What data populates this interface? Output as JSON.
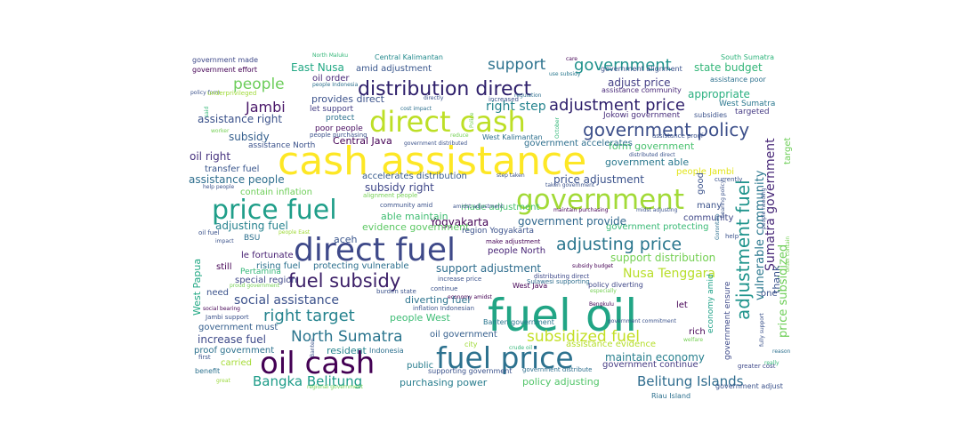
{
  "words": [
    {
      "text": "cash assistance",
      "color": "#fde725",
      "weight": 1.0
    },
    {
      "text": "fuel oil",
      "color": "#21a585",
      "weight": 0.95
    },
    {
      "text": "direct fuel",
      "color": "#3e4989",
      "weight": 0.78
    },
    {
      "text": "oil cash",
      "color": "#440154",
      "weight": 0.77
    },
    {
      "text": "fuel price",
      "color": "#2c718e",
      "weight": 0.76
    },
    {
      "text": "direct cash",
      "color": "#bddf26",
      "weight": 0.74
    },
    {
      "text": "government",
      "color": "#a2da37",
      "weight": 0.7
    },
    {
      "text": "price fuel",
      "color": "#1f9e89",
      "weight": 0.68
    },
    {
      "text": "distribution direct",
      "color": "#2d1e6a",
      "weight": 0.52
    },
    {
      "text": "fuel subsidy",
      "color": "#3a1d66",
      "weight": 0.5
    },
    {
      "text": "government policy",
      "color": "#3c4f8a",
      "weight": 0.49
    },
    {
      "text": "adjustment fuel",
      "color": "#1f948c",
      "weight": 0.48
    },
    {
      "text": "adjusting price",
      "color": "#2a768e",
      "weight": 0.44
    },
    {
      "text": "adjustment price",
      "color": "#2d1e6a",
      "weight": 0.4
    },
    {
      "text": "North Sumatra",
      "color": "#2b758e",
      "weight": 0.38
    },
    {
      "text": "subsidized fuel",
      "color": "#c2df23",
      "weight": 0.36
    },
    {
      "text": "right target",
      "color": "#25838e",
      "weight": 0.38
    },
    {
      "text": "people",
      "color": "#6ccd5a",
      "weight": 0.34
    },
    {
      "text": "support",
      "color": "#2c728e",
      "weight": 0.33
    },
    {
      "text": "government",
      "color": "#20928c",
      "weight": 0.34
    },
    {
      "text": "Bangka Belitung",
      "color": "#1e9c89",
      "weight": 0.32
    },
    {
      "text": "Belitung Islands",
      "color": "#2f6c8e",
      "weight": 0.32
    },
    {
      "text": "Jambi",
      "color": "#481668",
      "weight": 0.3
    },
    {
      "text": "right step",
      "color": "#25848e",
      "weight": 0.28
    },
    {
      "text": "social assistance",
      "color": "#3b518b",
      "weight": 0.28
    },
    {
      "text": "Nusa Tenggara",
      "color": "#b8de29",
      "weight": 0.28
    },
    {
      "text": "Sumatra government",
      "color": "#482878",
      "weight": 0.27
    },
    {
      "text": "price subsidized",
      "color": "#6ece58",
      "weight": 0.26
    },
    {
      "text": "vulnerable community",
      "color": "#2a778e",
      "weight": 0.25
    },
    {
      "text": "East Nusa",
      "color": "#22a884",
      "weight": 0.24
    },
    {
      "text": "state budget",
      "color": "#34b679",
      "weight": 0.24
    },
    {
      "text": "appropriate",
      "color": "#29af7f",
      "weight": 0.24
    },
    {
      "text": "assistance right",
      "color": "#3b528b",
      "weight": 0.24
    },
    {
      "text": "subsidy right",
      "color": "#3f4788",
      "weight": 0.24
    },
    {
      "text": "Yogyakarta",
      "color": "#450457",
      "weight": 0.25
    },
    {
      "text": "price adjustment",
      "color": "#3b528b",
      "weight": 0.24
    },
    {
      "text": "government provide",
      "color": "#31688e",
      "weight": 0.24
    },
    {
      "text": "support adjustment",
      "color": "#2e6d8e",
      "weight": 0.24
    },
    {
      "text": "support distribution",
      "color": "#75d054",
      "weight": 0.24
    },
    {
      "text": "adjust price",
      "color": "#433e85",
      "weight": 0.23
    },
    {
      "text": "assistance people",
      "color": "#2e6e8e",
      "weight": 0.24
    },
    {
      "text": "adjusting fuel",
      "color": "#26828e",
      "weight": 0.24
    },
    {
      "text": "able maintain",
      "color": "#40bd72",
      "weight": 0.22
    },
    {
      "text": "maintain economy",
      "color": "#277f8e",
      "weight": 0.23
    },
    {
      "text": "purchasing power",
      "color": "#287d8e",
      "weight": 0.22
    },
    {
      "text": "policy adjusting",
      "color": "#52c569",
      "weight": 0.22
    },
    {
      "text": "increase fuel",
      "color": "#3e4a89",
      "weight": 0.22
    },
    {
      "text": "form government",
      "color": "#48c16e",
      "weight": 0.22
    },
    {
      "text": "government able",
      "color": "#2a788e",
      "weight": 0.22
    },
    {
      "text": "oil right",
      "color": "#46327e",
      "weight": 0.22
    },
    {
      "text": "subsidy",
      "color": "#355f8d",
      "weight": 0.22
    },
    {
      "text": "Central Java",
      "color": "#440154",
      "weight": 0.22
    },
    {
      "text": "evidence government",
      "color": "#5cc863",
      "weight": 0.21
    },
    {
      "text": "aceh",
      "color": "#39558c",
      "weight": 0.21
    },
    {
      "text": "people West",
      "color": "#3dbc74",
      "weight": 0.21
    },
    {
      "text": "oil government",
      "color": "#355f8d",
      "weight": 0.2
    },
    {
      "text": "resident",
      "color": "#25838e",
      "weight": 0.2
    },
    {
      "text": "diverting fuel",
      "color": "#2c738e",
      "weight": 0.2
    },
    {
      "text": "provides direct",
      "color": "#3b528b",
      "weight": 0.2
    },
    {
      "text": "amid adjustment",
      "color": "#39568c",
      "weight": 0.17
    },
    {
      "text": "West Papua",
      "color": "#22a884",
      "weight": 0.2
    },
    {
      "text": "thank",
      "color": "#3a538b",
      "weight": 0.2
    },
    {
      "text": "economy amid",
      "color": "#1fa188",
      "weight": 0.17
    },
    {
      "text": "government ensure",
      "color": "#3e4a89",
      "weight": 0.17
    },
    {
      "text": "protecting vulnerable",
      "color": "#2d708e",
      "weight": 0.18
    },
    {
      "text": "rising fuel",
      "color": "#2c728e",
      "weight": 0.18
    },
    {
      "text": "special region",
      "color": "#3f4889",
      "weight": 0.18
    },
    {
      "text": "government protecting",
      "color": "#3aba76",
      "weight": 0.16
    },
    {
      "text": "accelerates distribution",
      "color": "#375b8d",
      "weight": 0.16
    },
    {
      "text": "made adjustment",
      "color": "#46c06f",
      "weight": 0.16
    },
    {
      "text": "government accelerates",
      "color": "#2e6f8e",
      "weight": 0.15
    },
    {
      "text": "Jokowi government",
      "color": "#472d7b",
      "weight": 0.14
    },
    {
      "text": "assistance evidence",
      "color": "#b5de2b",
      "weight": 0.16
    },
    {
      "text": "government continue",
      "color": "#443a83",
      "weight": 0.16
    },
    {
      "text": "government must",
      "color": "#355f8d",
      "weight": 0.15
    },
    {
      "text": "proof government",
      "color": "#2c718e",
      "weight": 0.15
    },
    {
      "text": "transfer fuel",
      "color": "#39568c",
      "weight": 0.16
    },
    {
      "text": "contain inflation",
      "color": "#6ece58",
      "weight": 0.16
    },
    {
      "text": "people Jambi",
      "color": "#e2e418",
      "weight": 0.15
    },
    {
      "text": "community",
      "color": "#3f4788",
      "weight": 0.15
    },
    {
      "text": "le fortunate",
      "color": "#482173",
      "weight": 0.15
    },
    {
      "text": "still",
      "color": "#440154",
      "weight": 0.16
    },
    {
      "text": "need",
      "color": "#3b528b",
      "weight": 0.16
    },
    {
      "text": "let",
      "color": "#440154",
      "weight": 0.16
    },
    {
      "text": "rich",
      "color": "#440154",
      "weight": 0.14
    },
    {
      "text": "carried",
      "color": "#a5db36",
      "weight": 0.15
    },
    {
      "text": "public",
      "color": "#287c8e",
      "weight": 0.14
    },
    {
      "text": "Pertamina",
      "color": "#35b779",
      "weight": 0.14
    },
    {
      "text": "BSU",
      "color": "#2d708e",
      "weight": 0.14
    },
    {
      "text": "people North",
      "color": "#482576",
      "weight": 0.14
    },
    {
      "text": "region Yogyakarta",
      "color": "#3b518b",
      "weight": 0.13
    },
    {
      "text": "poor people",
      "color": "#470d60",
      "weight": 0.13
    },
    {
      "text": "let support",
      "color": "#433d84",
      "weight": 0.13
    },
    {
      "text": "assistance North",
      "color": "#3b528b",
      "weight": 0.13
    },
    {
      "text": "oil order",
      "color": "#482878",
      "weight": 0.13
    },
    {
      "text": "protect",
      "color": "#2c728e",
      "weight": 0.12
    },
    {
      "text": "government made",
      "color": "#3e4989",
      "weight": 0.12
    },
    {
      "text": "government effort",
      "color": "#440154",
      "weight": 0.12
    },
    {
      "text": "government alignment",
      "color": "#3b528b",
      "weight": 0.11
    },
    {
      "text": "assistance poor",
      "color": "#2d708e",
      "weight": 0.12
    },
    {
      "text": "West Sumatra",
      "color": "#2a778e",
      "weight": 0.12
    },
    {
      "text": "assistance community",
      "color": "#482878",
      "weight": 0.11
    },
    {
      "text": "targeted",
      "color": "#443983",
      "weight": 0.12
    },
    {
      "text": "subsidies",
      "color": "#3b528b",
      "weight": 0.11
    },
    {
      "text": "Central Kalimantan",
      "color": "#238a8d",
      "weight": 0.11
    },
    {
      "text": "South Sumatra",
      "color": "#2fb47c",
      "weight": 0.11
    },
    {
      "text": "increased",
      "color": "#3b528b",
      "weight": 0.1
    },
    {
      "text": "West Kalimantan",
      "color": "#2d708e",
      "weight": 0.11
    },
    {
      "text": "West Java",
      "color": "#440154",
      "weight": 0.12
    },
    {
      "text": "Banten government",
      "color": "#2a768e",
      "weight": 0.11
    },
    {
      "text": "Sulawesi supporting",
      "color": "#2e6d8e",
      "weight": 0.11
    },
    {
      "text": "policy diverting",
      "color": "#3f4788",
      "weight": 0.11
    },
    {
      "text": "Indonesia",
      "color": "#2d708e",
      "weight": 0.12
    },
    {
      "text": "city",
      "color": "#a0da39",
      "weight": 0.12
    },
    {
      "text": "supporting government",
      "color": "#3b528b",
      "weight": 0.11
    },
    {
      "text": "government distribute",
      "color": "#2e6f8e",
      "weight": 0.1
    },
    {
      "text": "Riau Island",
      "color": "#2d708e",
      "weight": 0.1
    },
    {
      "text": "government adjust",
      "color": "#3b528b",
      "weight": 0.1
    },
    {
      "text": "greater cost",
      "color": "#3e4989",
      "weight": 0.09
    },
    {
      "text": "make adjustment",
      "color": "#440154",
      "weight": 0.1
    },
    {
      "text": "distributing direct",
      "color": "#3e4989",
      "weight": 0.1
    },
    {
      "text": "Jambi support",
      "color": "#3b528b",
      "weight": 0.09
    },
    {
      "text": "social bearing",
      "color": "#440154",
      "weight": 0.08
    },
    {
      "text": "government commitment",
      "color": "#3b528b",
      "weight": 0.08
    },
    {
      "text": "economy amidst",
      "color": "#440154",
      "weight": 0.07
    },
    {
      "text": "Bengkulu",
      "color": "#440154",
      "weight": 0.09
    },
    {
      "text": "benefit",
      "color": "#2c718e",
      "weight": 0.1
    },
    {
      "text": "first",
      "color": "#3b528b",
      "weight": 0.09
    },
    {
      "text": "great",
      "color": "#9bd93c",
      "weight": 0.08
    },
    {
      "text": "worker",
      "color": "#75d054",
      "weight": 0.08
    },
    {
      "text": "policy form",
      "color": "#3b528b",
      "weight": 0.08
    },
    {
      "text": "underprivileged",
      "color": "#a0da39",
      "weight": 0.09
    },
    {
      "text": "North Maluku",
      "color": "#35b779",
      "weight": 0.08
    },
    {
      "text": "people purchasing",
      "color": "#3b528b",
      "weight": 0.08
    },
    {
      "text": "people Indonesia",
      "color": "#2d708e",
      "weight": 0.08
    },
    {
      "text": "use subsidy",
      "color": "#2a788e",
      "weight": 0.08
    },
    {
      "text": "regulation",
      "color": "#2e6f8e",
      "weight": 0.08
    },
    {
      "text": "directly",
      "color": "#3b528b",
      "weight": 0.08
    },
    {
      "text": "cost impact",
      "color": "#2d708e",
      "weight": 0.08
    },
    {
      "text": "government distributed",
      "color": "#3b528b",
      "weight": 0.07
    },
    {
      "text": "assistance proof",
      "color": "#3b528b",
      "weight": 0.08
    },
    {
      "text": "distributed direct",
      "color": "#3b528b",
      "weight": 0.08
    },
    {
      "text": "currently",
      "color": "#3b528b",
      "weight": 0.08
    },
    {
      "text": "fully support",
      "color": "#3b528b",
      "weight": 0.07
    },
    {
      "text": "welfare",
      "color": "#75d054",
      "weight": 0.08
    },
    {
      "text": "reason",
      "color": "#2d708e",
      "weight": 0.08
    },
    {
      "text": "Gorontalo",
      "color": "#2e6f8e",
      "weight": 0.08
    },
    {
      "text": "help",
      "color": "#3b528b",
      "weight": 0.08
    },
    {
      "text": "one",
      "color": "#3b528b",
      "weight": 0.1
    },
    {
      "text": "target",
      "color": "#6ece58",
      "weight": 0.12
    },
    {
      "text": "good",
      "color": "#3b528b",
      "weight": 0.12
    },
    {
      "text": "many",
      "color": "#3b528b",
      "weight": 0.12
    },
    {
      "text": "inflation Indonesian",
      "color": "#3b528b",
      "weight": 0.08
    },
    {
      "text": "burden state",
      "color": "#3b528b",
      "weight": 0.08
    },
    {
      "text": "continue",
      "color": "#3b528b",
      "weight": 0.08
    },
    {
      "text": "increase price",
      "color": "#3b528b",
      "weight": 0.08
    },
    {
      "text": "subsidy budget",
      "color": "#440154",
      "weight": 0.07
    },
    {
      "text": "especially",
      "color": "#75d054",
      "weight": 0.07
    },
    {
      "text": "maintain purchasing",
      "color": "#440154",
      "weight": 0.07
    },
    {
      "text": "midst adjusting",
      "color": "#3b528b",
      "weight": 0.07
    },
    {
      "text": "taken government",
      "color": "#3b528b",
      "weight": 0.07
    },
    {
      "text": "step taken",
      "color": "#3b528b",
      "weight": 0.07
    },
    {
      "text": "amidst adjustment",
      "color": "#3b528b",
      "weight": 0.07
    },
    {
      "text": "community amid",
      "color": "#3b528b",
      "weight": 0.08
    },
    {
      "text": "alignment people",
      "color": "#75d054",
      "weight": 0.08
    },
    {
      "text": "regional government",
      "color": "#75d054",
      "weight": 0.07
    },
    {
      "text": "crude oil",
      "color": "#35b779",
      "weight": 0.07
    },
    {
      "text": "proud government",
      "color": "#75d054",
      "weight": 0.07
    },
    {
      "text": "help people",
      "color": "#3b528b",
      "weight": 0.07
    },
    {
      "text": "impact",
      "color": "#3b528b",
      "weight": 0.07
    },
    {
      "text": "people East",
      "color": "#a0da39",
      "weight": 0.07
    },
    {
      "text": "oil fuel",
      "color": "#3b528b",
      "weight": 0.08
    },
    {
      "text": "bearing policy",
      "color": "#3b528b",
      "weight": 0.07
    },
    {
      "text": "people needing",
      "color": "#3b528b",
      "weight": 0.07
    },
    {
      "text": "order contain",
      "color": "#75d054",
      "weight": 0.07
    },
    {
      "text": "really",
      "color": "#35b779",
      "weight": 0.07
    },
    {
      "text": "October",
      "color": "#35b779",
      "weight": 0.07
    },
    {
      "text": "Police",
      "color": "#75d054",
      "weight": 0.07
    },
    {
      "text": "reduce",
      "color": "#75d054",
      "weight": 0.07
    },
    {
      "text": "said",
      "color": "#35b779",
      "weight": 0.07
    },
    {
      "text": "Banten",
      "color": "#3b528b",
      "weight": 0.07
    },
    {
      "text": "care",
      "color": "#440154",
      "weight": 0.07
    }
  ]
}
